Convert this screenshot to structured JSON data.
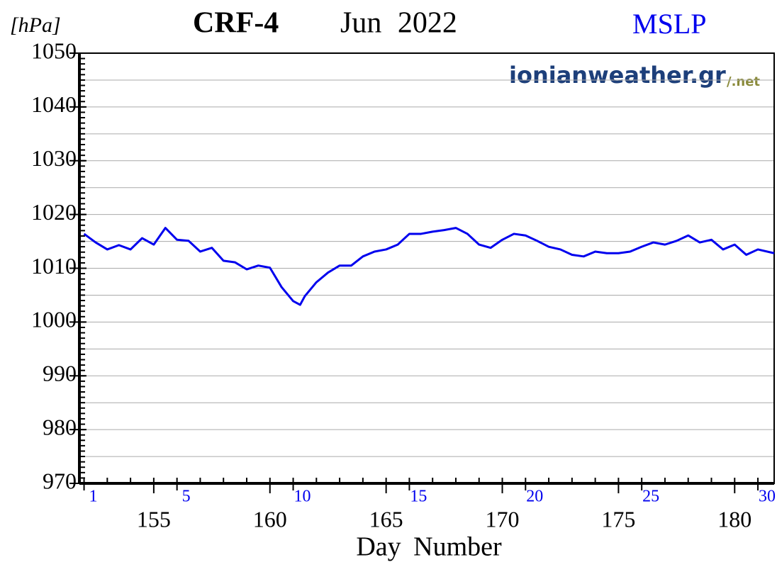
{
  "chart_data": {
    "type": "line",
    "title": "CRF-4",
    "subtitle": "Jun 2022",
    "annotation": "MSLP",
    "watermark": "ionianweather.gr",
    "watermark_suffix": "/.net",
    "y_label": "[hPa]",
    "x_label": "Day Number",
    "xlim": [
      151.8,
      181.7
    ],
    "ylim": [
      970,
      1050
    ],
    "xticks": [
      155,
      160,
      165,
      170,
      175,
      180
    ],
    "yticks": [
      970,
      980,
      990,
      1000,
      1010,
      1020,
      1030,
      1040,
      1050
    ],
    "y_minor_grid": [
      975,
      985,
      995,
      1005,
      1015,
      1025,
      1035,
      1045
    ],
    "minor_tick_step": 1,
    "day_ticks": [
      {
        "value": 152,
        "label": "1"
      },
      {
        "value": 156,
        "label": "5"
      },
      {
        "value": 161,
        "label": "10"
      },
      {
        "value": 166,
        "label": "15"
      },
      {
        "value": 171,
        "label": "20"
      },
      {
        "value": 176,
        "label": "25"
      },
      {
        "value": 181,
        "label": "30"
      }
    ],
    "grid": true,
    "series": [
      {
        "name": "MSLP",
        "color": "#0000ee",
        "x": [
          152,
          152.5,
          153,
          153.5,
          154,
          154.5,
          155,
          155.5,
          156,
          156.5,
          157,
          157.5,
          158,
          158.5,
          159,
          159.5,
          160,
          160.5,
          161,
          161.3,
          161.5,
          162,
          162.5,
          163,
          163.5,
          164,
          164.5,
          165,
          165.5,
          166,
          166.5,
          167,
          167.5,
          168,
          168.5,
          169,
          169.5,
          170,
          170.5,
          171,
          171.5,
          172,
          172.5,
          173,
          173.5,
          174,
          174.5,
          175,
          175.5,
          176,
          176.5,
          177,
          177.5,
          178,
          178.5,
          179,
          179.5,
          180,
          180.5,
          181,
          181.7
        ],
        "values": [
          1016.4,
          1014.8,
          1013.5,
          1014.3,
          1013.5,
          1015.6,
          1014.4,
          1017.5,
          1015.3,
          1015.1,
          1013.1,
          1013.8,
          1011.4,
          1011.1,
          1009.8,
          1010.5,
          1010.1,
          1006.5,
          1003.9,
          1003.2,
          1004.8,
          1007.4,
          1009.2,
          1010.5,
          1010.5,
          1012.2,
          1013.1,
          1013.5,
          1014.4,
          1016.4,
          1016.4,
          1016.8,
          1017.1,
          1017.5,
          1016.4,
          1014.4,
          1013.8,
          1015.3,
          1016.4,
          1016.1,
          1015.1,
          1014.0,
          1013.5,
          1012.5,
          1012.2,
          1013.1,
          1012.8,
          1012.8,
          1013.1,
          1014.0,
          1014.8,
          1014.4,
          1015.1,
          1016.1,
          1014.8,
          1015.3,
          1013.5,
          1014.4,
          1012.5,
          1013.5,
          1012.8
        ]
      }
    ]
  }
}
